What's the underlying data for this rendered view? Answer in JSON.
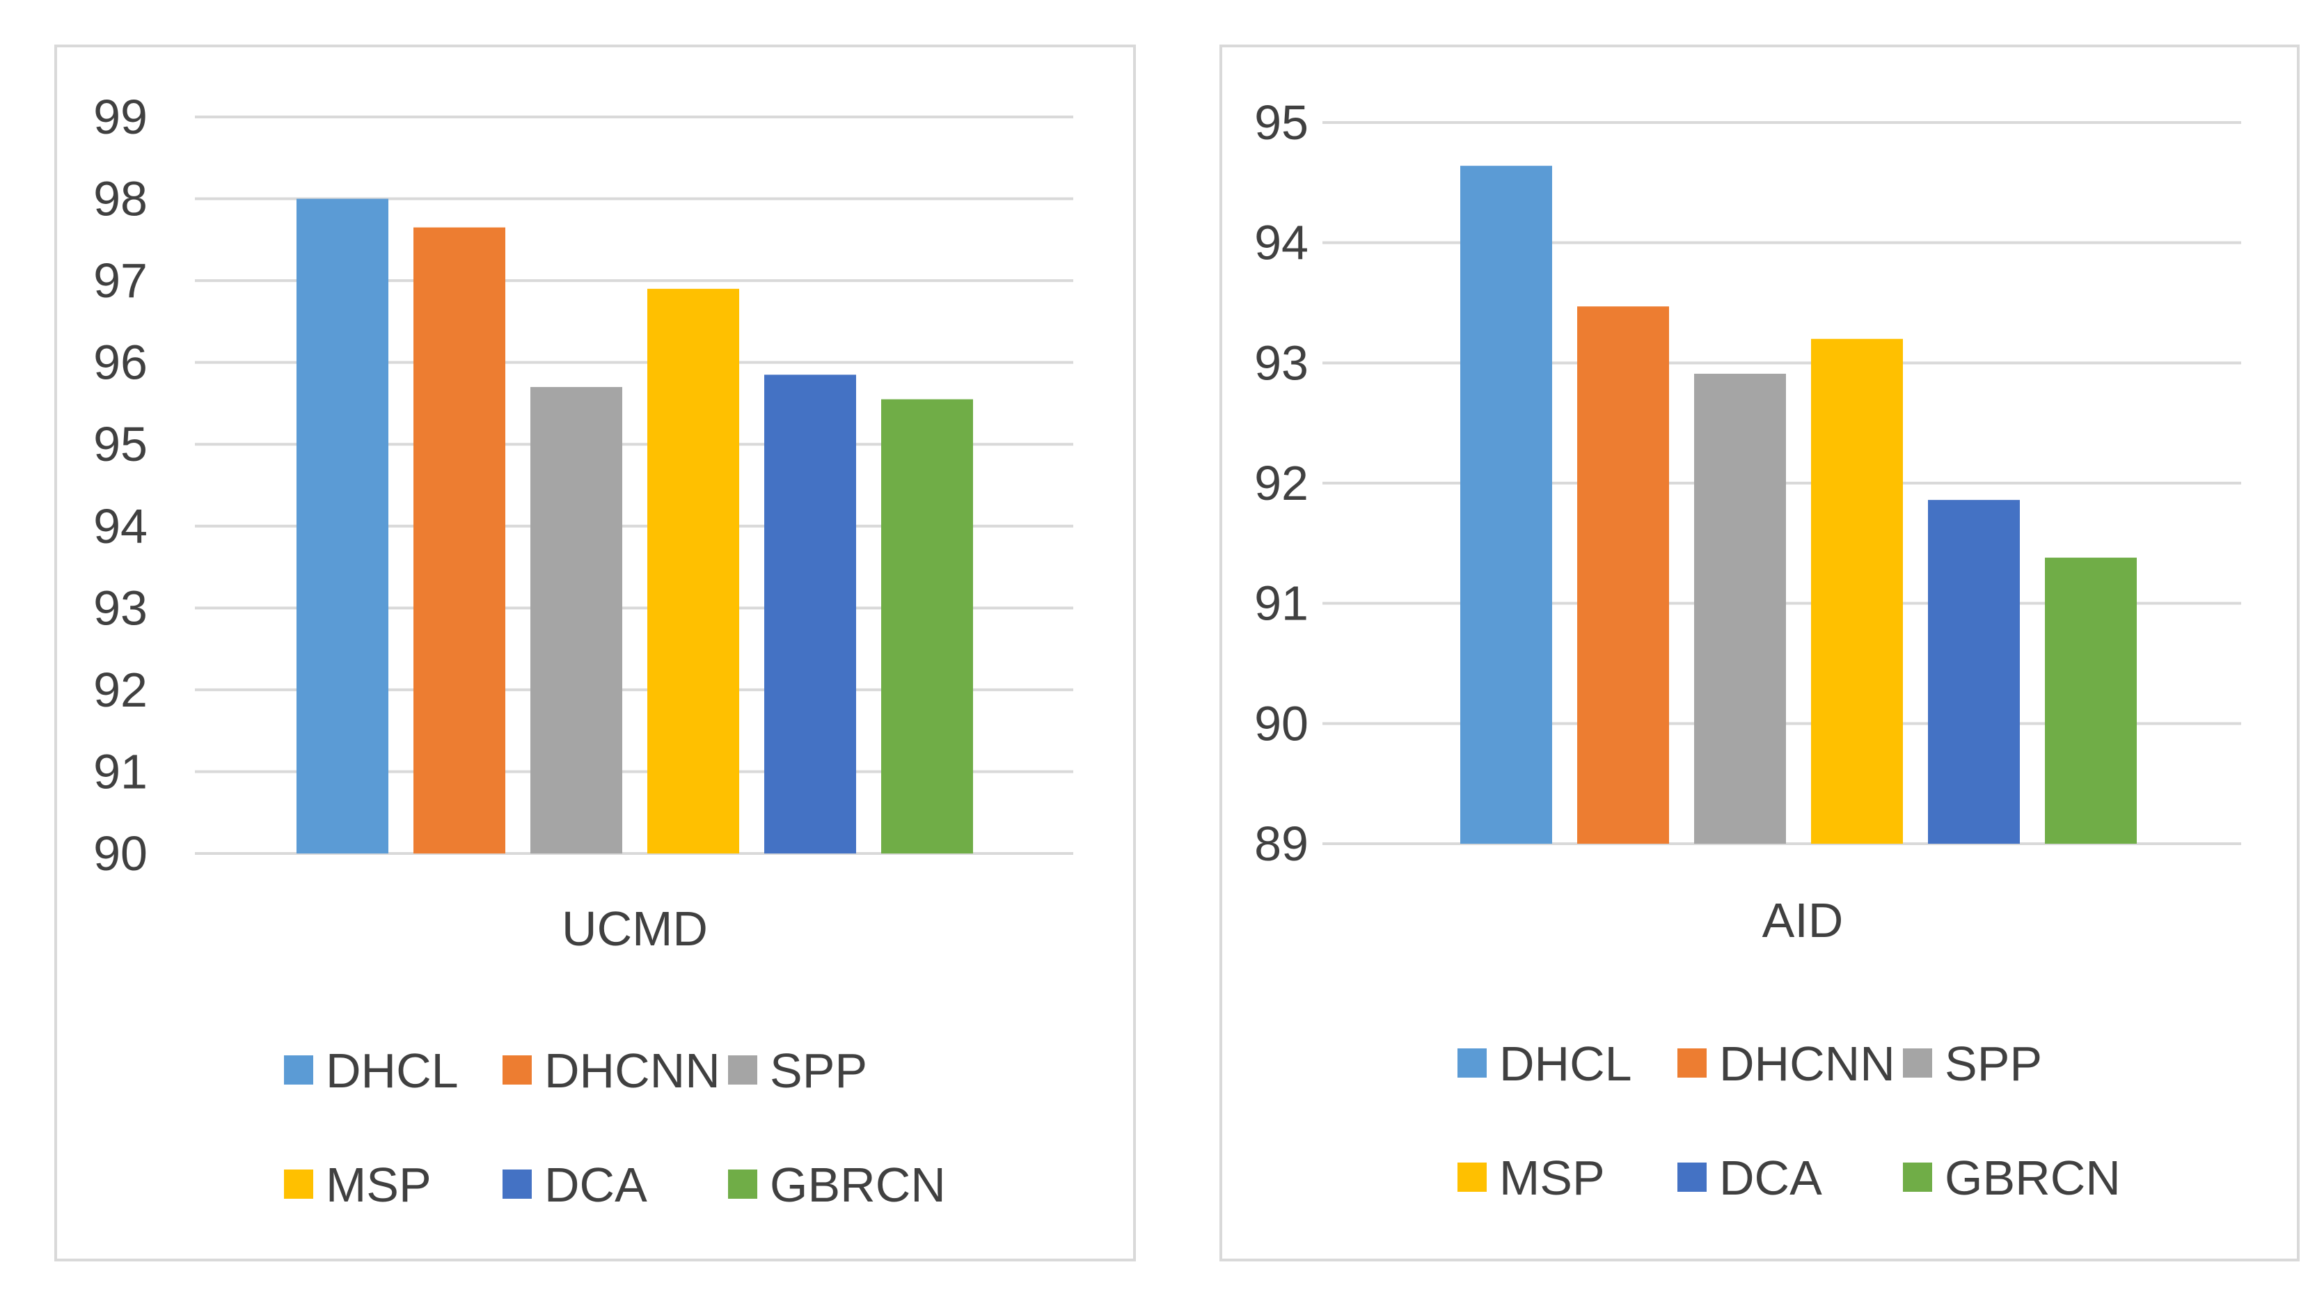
{
  "chart_data": [
    {
      "type": "bar",
      "xlabel": "UCMD",
      "ylabel": "",
      "ylim": [
        90,
        99
      ],
      "yticks": [
        "90",
        "91",
        "92",
        "93",
        "94",
        "95",
        "96",
        "97",
        "98",
        "99"
      ],
      "grid": true,
      "legend_position": "bottom",
      "categories": [
        "UCMD"
      ],
      "series": [
        {
          "name": "DHCL",
          "values": [
            98.0
          ],
          "color": "#5B9BD5"
        },
        {
          "name": "DHCNN",
          "values": [
            97.65
          ],
          "color": "#ED7D31"
        },
        {
          "name": "SPP",
          "values": [
            95.7
          ],
          "color": "#A5A5A5"
        },
        {
          "name": "MSP",
          "values": [
            96.9
          ],
          "color": "#FFC000"
        },
        {
          "name": "DCA",
          "values": [
            95.85
          ],
          "color": "#4472C4"
        },
        {
          "name": "GBRCN",
          "values": [
            95.55
          ],
          "color": "#70AD47"
        }
      ]
    },
    {
      "type": "bar",
      "xlabel": "AID",
      "ylabel": "",
      "ylim": [
        89,
        95
      ],
      "yticks": [
        "89",
        "90",
        "91",
        "92",
        "93",
        "94",
        "95"
      ],
      "grid": true,
      "legend_position": "bottom",
      "categories": [
        "AID"
      ],
      "series": [
        {
          "name": "DHCL",
          "values": [
            94.64
          ],
          "color": "#5B9BD5"
        },
        {
          "name": "DHCNN",
          "values": [
            93.47
          ],
          "color": "#ED7D31"
        },
        {
          "name": "SPP",
          "values": [
            92.91
          ],
          "color": "#A5A5A5"
        },
        {
          "name": "MSP",
          "values": [
            93.2
          ],
          "color": "#FFC000"
        },
        {
          "name": "DCA",
          "values": [
            91.86
          ],
          "color": "#4472C4"
        },
        {
          "name": "GBRCN",
          "values": [
            91.38
          ],
          "color": "#70AD47"
        }
      ]
    }
  ]
}
